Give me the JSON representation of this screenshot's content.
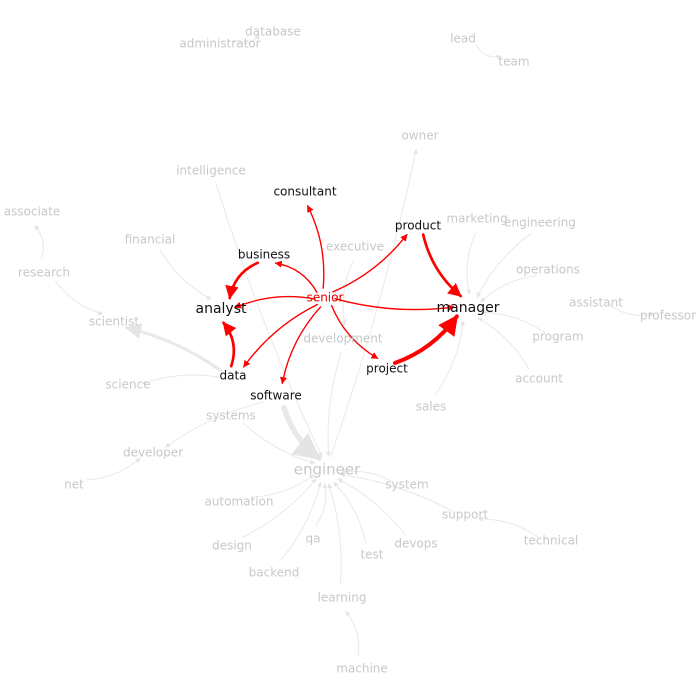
{
  "colors": {
    "focus": "#ff0000",
    "muted_edge": "#e9e9e9",
    "muted_text": "#c8c8c8",
    "dark_text": "#111111"
  },
  "nodes": [
    {
      "id": "database",
      "label": "database",
      "style": "muted"
    },
    {
      "id": "administrator",
      "label": "administrator",
      "style": "muted"
    },
    {
      "id": "lead",
      "label": "lead",
      "style": "muted"
    },
    {
      "id": "team",
      "label": "team",
      "style": "muted"
    },
    {
      "id": "owner",
      "label": "owner",
      "style": "muted"
    },
    {
      "id": "intelligence",
      "label": "intelligence",
      "style": "muted"
    },
    {
      "id": "consultant",
      "label": "consultant",
      "style": "dark"
    },
    {
      "id": "product",
      "label": "product",
      "style": "dark"
    },
    {
      "id": "marketing",
      "label": "marketing",
      "style": "muted"
    },
    {
      "id": "engineering",
      "label": "engineering",
      "style": "muted"
    },
    {
      "id": "associate",
      "label": "associate",
      "style": "muted"
    },
    {
      "id": "financial",
      "label": "financial",
      "style": "muted"
    },
    {
      "id": "business",
      "label": "business",
      "style": "dark"
    },
    {
      "id": "executive",
      "label": "executive",
      "style": "muted"
    },
    {
      "id": "research",
      "label": "research",
      "style": "muted"
    },
    {
      "id": "operations",
      "label": "operations",
      "style": "muted"
    },
    {
      "id": "senior",
      "label": "senior",
      "style": "focus"
    },
    {
      "id": "assistant",
      "label": "assistant",
      "style": "muted"
    },
    {
      "id": "professor",
      "label": "professor",
      "style": "muted"
    },
    {
      "id": "analyst",
      "label": "analyst",
      "style": "dark-big"
    },
    {
      "id": "manager",
      "label": "manager",
      "style": "dark-big"
    },
    {
      "id": "scientist",
      "label": "scientist",
      "style": "muted"
    },
    {
      "id": "development",
      "label": "development",
      "style": "muted"
    },
    {
      "id": "program",
      "label": "program",
      "style": "muted"
    },
    {
      "id": "project",
      "label": "project",
      "style": "dark"
    },
    {
      "id": "data",
      "label": "data",
      "style": "dark"
    },
    {
      "id": "account",
      "label": "account",
      "style": "muted"
    },
    {
      "id": "science",
      "label": "science",
      "style": "muted"
    },
    {
      "id": "software",
      "label": "software",
      "style": "dark"
    },
    {
      "id": "sales",
      "label": "sales",
      "style": "muted"
    },
    {
      "id": "systems",
      "label": "systems",
      "style": "muted"
    },
    {
      "id": "developer",
      "label": "developer",
      "style": "muted"
    },
    {
      "id": "engineer",
      "label": "engineer",
      "style": "muted-hub"
    },
    {
      "id": "net",
      "label": "net",
      "style": "muted"
    },
    {
      "id": "system",
      "label": "system",
      "style": "muted"
    },
    {
      "id": "automation",
      "label": "automation",
      "style": "muted"
    },
    {
      "id": "support",
      "label": "support",
      "style": "muted"
    },
    {
      "id": "technical",
      "label": "technical",
      "style": "muted"
    },
    {
      "id": "design",
      "label": "design",
      "style": "muted"
    },
    {
      "id": "qa",
      "label": "qa",
      "style": "muted"
    },
    {
      "id": "devops",
      "label": "devops",
      "style": "muted"
    },
    {
      "id": "test",
      "label": "test",
      "style": "muted"
    },
    {
      "id": "backend",
      "label": "backend",
      "style": "muted"
    },
    {
      "id": "learning",
      "label": "learning",
      "style": "muted"
    },
    {
      "id": "machine",
      "label": "machine",
      "style": "muted"
    }
  ],
  "edges": [
    {
      "from": "senior",
      "to": "consultant",
      "kind": "focus",
      "weight": 1
    },
    {
      "from": "senior",
      "to": "business",
      "kind": "focus",
      "weight": 1
    },
    {
      "from": "senior",
      "to": "analyst",
      "kind": "focus",
      "weight": 1
    },
    {
      "from": "senior",
      "to": "data",
      "kind": "focus",
      "weight": 1
    },
    {
      "from": "senior",
      "to": "software",
      "kind": "focus",
      "weight": 1
    },
    {
      "from": "senior",
      "to": "product",
      "kind": "focus",
      "weight": 1
    },
    {
      "from": "senior",
      "to": "manager",
      "kind": "focus",
      "weight": 1
    },
    {
      "from": "senior",
      "to": "project",
      "kind": "focus",
      "weight": 1
    },
    {
      "from": "business",
      "to": "analyst",
      "kind": "focus",
      "weight": 2
    },
    {
      "from": "data",
      "to": "analyst",
      "kind": "focus",
      "weight": 2
    },
    {
      "from": "product",
      "to": "manager",
      "kind": "focus",
      "weight": 2
    },
    {
      "from": "project",
      "to": "manager",
      "kind": "focus",
      "weight": 3
    },
    {
      "from": "administrator",
      "to": "database",
      "kind": "muted",
      "weight": 1
    },
    {
      "from": "lead",
      "to": "team",
      "kind": "muted",
      "weight": 1
    },
    {
      "from": "engineer",
      "to": "owner",
      "kind": "muted",
      "weight": 1
    },
    {
      "from": "data",
      "to": "scientist",
      "kind": "muted",
      "weight": 2
    },
    {
      "from": "research",
      "to": "scientist",
      "kind": "muted",
      "weight": 1
    },
    {
      "from": "research",
      "to": "associate",
      "kind": "muted",
      "weight": 1
    },
    {
      "from": "data",
      "to": "science",
      "kind": "muted",
      "weight": 1
    },
    {
      "from": "software",
      "to": "engineer",
      "kind": "muted",
      "weight": 3
    },
    {
      "from": "software",
      "to": "developer",
      "kind": "muted",
      "weight": 1
    },
    {
      "from": "net",
      "to": "developer",
      "kind": "muted",
      "weight": 1
    },
    {
      "from": "marketing",
      "to": "manager",
      "kind": "muted",
      "weight": 1
    },
    {
      "from": "engineering",
      "to": "manager",
      "kind": "muted",
      "weight": 1
    },
    {
      "from": "operations",
      "to": "manager",
      "kind": "muted",
      "weight": 1
    },
    {
      "from": "assistant",
      "to": "professor",
      "kind": "muted",
      "weight": 1
    },
    {
      "from": "program",
      "to": "manager",
      "kind": "muted",
      "weight": 1
    },
    {
      "from": "account",
      "to": "manager",
      "kind": "muted",
      "weight": 1
    },
    {
      "from": "sales",
      "to": "manager",
      "kind": "muted",
      "weight": 1
    },
    {
      "from": "executive",
      "to": "development",
      "kind": "muted",
      "weight": 1
    },
    {
      "from": "systems",
      "to": "engineer",
      "kind": "muted",
      "weight": 1
    },
    {
      "from": "system",
      "to": "engineer",
      "kind": "muted",
      "weight": 1
    },
    {
      "from": "automation",
      "to": "engineer",
      "kind": "muted",
      "weight": 1
    },
    {
      "from": "support",
      "to": "engineer",
      "kind": "muted",
      "weight": 1
    },
    {
      "from": "technical",
      "to": "support",
      "kind": "muted",
      "weight": 1
    },
    {
      "from": "design",
      "to": "engineer",
      "kind": "muted",
      "weight": 1
    },
    {
      "from": "qa",
      "to": "engineer",
      "kind": "muted",
      "weight": 1
    },
    {
      "from": "devops",
      "to": "engineer",
      "kind": "muted",
      "weight": 1
    },
    {
      "from": "test",
      "to": "engineer",
      "kind": "muted",
      "weight": 1
    },
    {
      "from": "backend",
      "to": "engineer",
      "kind": "muted",
      "weight": 1
    },
    {
      "from": "learning",
      "to": "engineer",
      "kind": "muted",
      "weight": 1
    },
    {
      "from": "machine",
      "to": "learning",
      "kind": "muted",
      "weight": 1
    },
    {
      "from": "intelligence",
      "to": "engineer",
      "kind": "muted",
      "weight": 1
    },
    {
      "from": "financial",
      "to": "analyst",
      "kind": "muted",
      "weight": 1
    },
    {
      "from": "development",
      "to": "engineer",
      "kind": "muted",
      "weight": 1
    }
  ]
}
